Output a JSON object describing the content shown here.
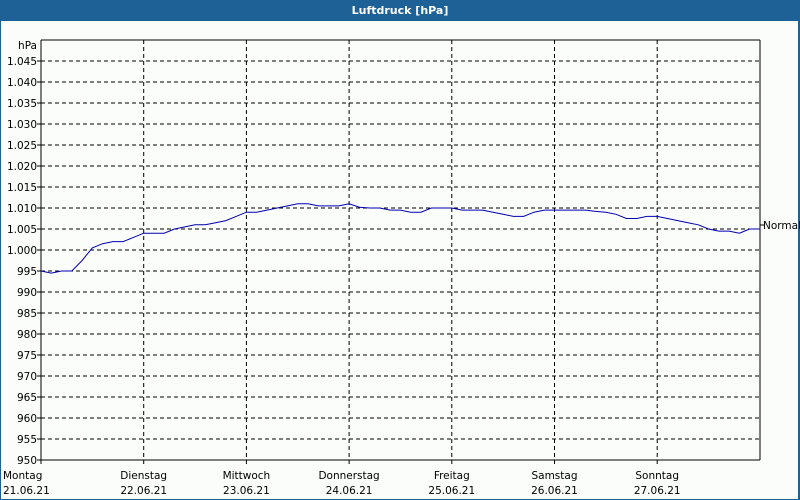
{
  "window": {
    "title": "Luftdruck [hPa]"
  },
  "colors": {
    "titlebar": "#1d6196",
    "line": "#0000b0",
    "background": "#fbfdfb",
    "grid": "#000000"
  },
  "chart_data": {
    "type": "line",
    "title": "Luftdruck [hPa]",
    "ylabel": "hPa",
    "xlabel": "",
    "ylim": [
      950,
      1050
    ],
    "yticks": [
      "950",
      "955",
      "960",
      "965",
      "970",
      "975",
      "980",
      "985",
      "990",
      "995",
      "1.000",
      "1.005",
      "1.010",
      "1.015",
      "1.020",
      "1.025",
      "1.030",
      "1.035",
      "1.040",
      "1.045"
    ],
    "grid": true,
    "grid_style": "dashed",
    "reference_line": {
      "label": "Normal",
      "value": 1005
    },
    "x_ticks": [
      {
        "day": "Montag",
        "date": "21.06.21"
      },
      {
        "day": "Dienstag",
        "date": "22.06.21"
      },
      {
        "day": "Mittwoch",
        "date": "23.06.21"
      },
      {
        "day": "Donnerstag",
        "date": "24.06.21"
      },
      {
        "day": "Freitag",
        "date": "25.06.21"
      },
      {
        "day": "Samstag",
        "date": "26.06.21"
      },
      {
        "day": "Sonntag",
        "date": "27.06.21"
      }
    ],
    "series": [
      {
        "name": "Luftdruck",
        "x_days": [
          0,
          0.1,
          0.2,
          0.3,
          0.4,
          0.5,
          0.6,
          0.7,
          0.8,
          0.9,
          1.0,
          1.1,
          1.2,
          1.3,
          1.4,
          1.5,
          1.6,
          1.7,
          1.8,
          1.9,
          2.0,
          2.1,
          2.2,
          2.3,
          2.4,
          2.5,
          2.6,
          2.7,
          2.8,
          2.9,
          3.0,
          3.1,
          3.2,
          3.3,
          3.4,
          3.5,
          3.6,
          3.7,
          3.8,
          3.9,
          4.0,
          4.1,
          4.2,
          4.3,
          4.4,
          4.5,
          4.6,
          4.7,
          4.8,
          4.9,
          5.0,
          5.1,
          5.2,
          5.3,
          5.4,
          5.5,
          5.6,
          5.7,
          5.8,
          5.9,
          6.0,
          6.1,
          6.2,
          6.3,
          6.4,
          6.5,
          6.6,
          6.7,
          6.8,
          6.9,
          7.0
        ],
        "values": [
          995,
          994.5,
          995,
          995,
          997.5,
          1000.5,
          1001.5,
          1002,
          1002,
          1003,
          1004,
          1004,
          1004,
          1005,
          1005.5,
          1006,
          1006,
          1006.5,
          1007,
          1008,
          1009,
          1009,
          1009.5,
          1010,
          1010.5,
          1011,
          1011,
          1010.5,
          1010.5,
          1010.5,
          1011,
          1010.2,
          1010,
          1010,
          1009.5,
          1009.5,
          1009,
          1009,
          1010,
          1010,
          1010,
          1009.5,
          1009.5,
          1009.5,
          1009,
          1008.5,
          1008,
          1008,
          1009,
          1009.5,
          1009.5,
          1009.5,
          1009.5,
          1009.5,
          1009.2,
          1009,
          1008.5,
          1007.5,
          1007.5,
          1008,
          1008,
          1007.5,
          1007,
          1006.5,
          1006,
          1005,
          1004.5,
          1004.5,
          1004,
          1005,
          1005
        ]
      }
    ]
  }
}
